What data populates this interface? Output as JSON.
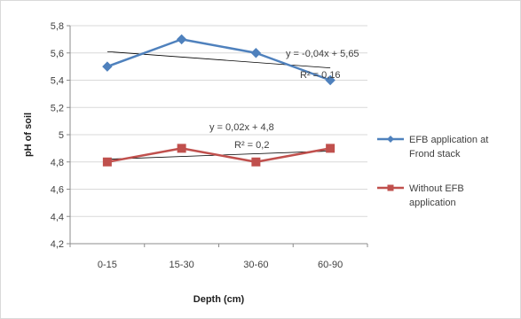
{
  "chart_data": {
    "type": "line",
    "title": "",
    "xlabel": "Depth (cm)",
    "ylabel": "pH of soil",
    "categories": [
      "0-15",
      "15-30",
      "30-60",
      "60-90"
    ],
    "ylim": [
      4.2,
      5.8
    ],
    "yticks": [
      "4,2",
      "4,4",
      "4,6",
      "4,8",
      "5",
      "5,2",
      "5,4",
      "5,6",
      "5,8"
    ],
    "grid": true,
    "legend_position": "right",
    "series": [
      {
        "name": "EFB application at Frond stack",
        "values": [
          5.5,
          5.7,
          5.6,
          5.4
        ],
        "color": "#4f81bd",
        "marker": "diamond"
      },
      {
        "name": "Without EFB application",
        "values": [
          4.8,
          4.9,
          4.8,
          4.9
        ],
        "color": "#c0504d",
        "marker": "square"
      }
    ],
    "trendlines": [
      {
        "series": 0,
        "equation": "y = -0,04x + 5,65",
        "r2": "R² = 0,16",
        "slope": -0.04,
        "intercept": 5.65
      },
      {
        "series": 1,
        "equation": "y = 0,02x + 4,8",
        "r2": "R² = 0,2",
        "slope": 0.02,
        "intercept": 4.8
      }
    ],
    "legend": {
      "items": [
        {
          "line1": "EFB application at",
          "line2": "Frond stack"
        },
        {
          "line1": "Without EFB",
          "line2": "application"
        }
      ]
    }
  }
}
